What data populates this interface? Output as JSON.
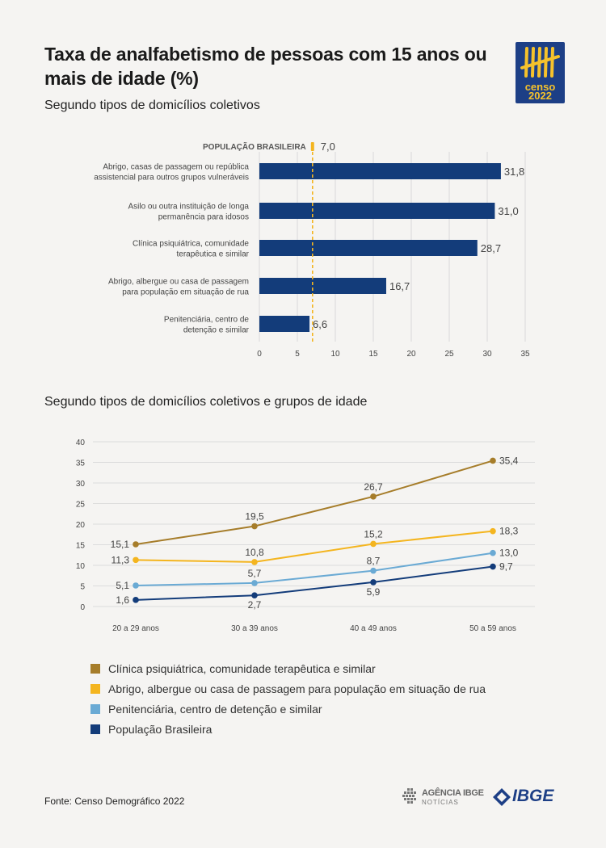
{
  "title": "Taxa de analfabetismo de pessoas com 15 anos ou mais de idade (%)",
  "logo": {
    "word1": "censo",
    "word2": "2022",
    "icon": "tally-marks-icon"
  },
  "source": "Fonte: Censo Demográfico 2022",
  "footer_logos": {
    "agencia_line1": "AGÊNCIA IBGE",
    "agencia_line2": "NOTÍCIAS",
    "ibge": "IBGE"
  },
  "colors": {
    "navy": "#133c7a",
    "brown": "#a67d2a",
    "yellow": "#f4b51f",
    "lightblue": "#6aaad4"
  },
  "chart_data": [
    {
      "type": "bar",
      "orientation": "horizontal",
      "subtitle": "Segundo tipos de domicílios coletivos",
      "reference_line": {
        "label": "POPULAÇÃO BRASILEIRA",
        "value": 7.0,
        "value_label": "7,0"
      },
      "categories": [
        [
          "Abrigo, casas de passagem ou república",
          "assistencial para outros grupos vulneráveis"
        ],
        [
          "Asilo ou outra instituição de longa",
          "permanência para idosos"
        ],
        [
          "Clínica psiquiátrica, comunidade",
          "terapêutica e similar"
        ],
        [
          "Abrigo, albergue ou casa de passagem",
          "para população em situação de rua"
        ],
        [
          "Penitenciária, centro de",
          "detenção e similar"
        ]
      ],
      "values": [
        31.8,
        31.0,
        28.7,
        16.7,
        6.6
      ],
      "value_labels": [
        "31,8",
        "31,0",
        "28,7",
        "16,7",
        "6,6"
      ],
      "xlim": [
        0,
        35
      ],
      "xticks": [
        0,
        5,
        10,
        15,
        20,
        25,
        30,
        35
      ],
      "grid": true
    },
    {
      "type": "line",
      "subtitle": "Segundo tipos de domicílios coletivos e grupos de idade",
      "categories": [
        "20 a 29 anos",
        "30 a 39 anos",
        "40 a 49 anos",
        "50 a 59 anos"
      ],
      "ylim": [
        0,
        40
      ],
      "yticks": [
        0,
        5,
        10,
        15,
        20,
        25,
        30,
        35,
        40
      ],
      "grid": true,
      "legend_position": "bottom",
      "series": [
        {
          "name": "Clínica psiquiátrica, comunidade terapêutica e similar",
          "color": "#a67d2a",
          "values": [
            15.1,
            19.5,
            26.7,
            35.4
          ],
          "labels": [
            "15,1",
            "19,5",
            "26,7",
            "35,4"
          ]
        },
        {
          "name": "Abrigo, albergue ou casa de passagem para população em situação de rua",
          "color": "#f4b51f",
          "values": [
            11.3,
            10.8,
            15.2,
            18.3
          ],
          "labels": [
            "11,3",
            "10,8",
            "15,2",
            "18,3"
          ]
        },
        {
          "name": "Penitenciária, centro de detenção e similar",
          "color": "#6aaad4",
          "values": [
            5.1,
            5.7,
            8.7,
            13.0
          ],
          "labels": [
            "5,1",
            "5,7",
            "8,7",
            "13,0"
          ]
        },
        {
          "name": "População Brasileira",
          "color": "#133c7a",
          "values": [
            1.6,
            2.7,
            5.9,
            9.7
          ],
          "labels": [
            "1,6",
            "2,7",
            "5,9",
            "9,7"
          ]
        }
      ]
    }
  ]
}
